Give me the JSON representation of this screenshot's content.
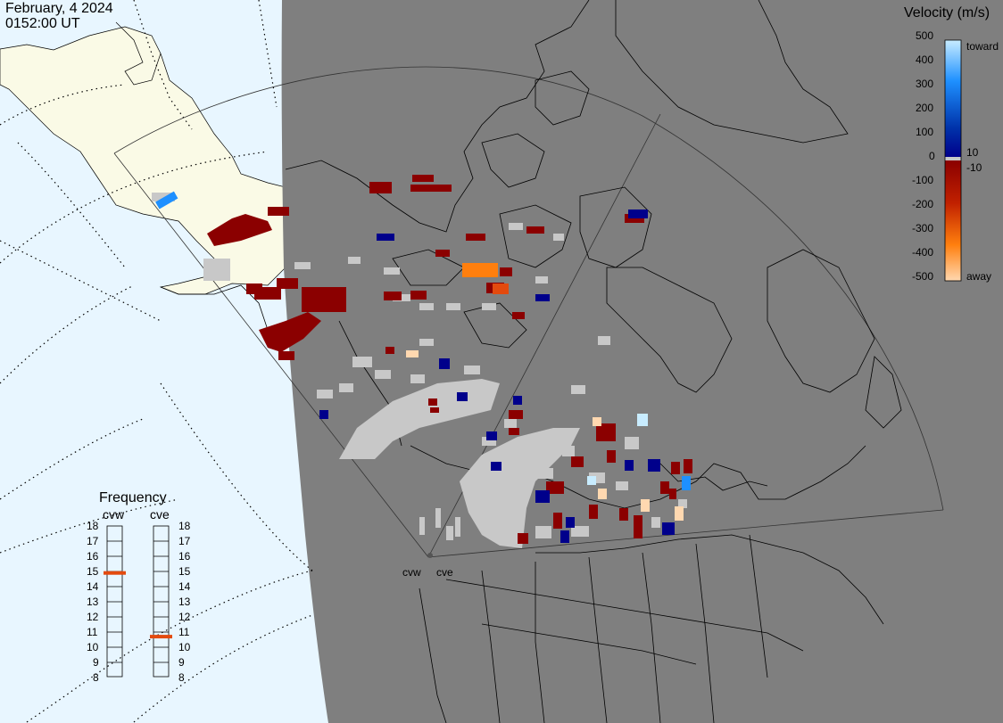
{
  "header": {
    "date": "February, 4 2024",
    "time": "0152:00 UT"
  },
  "velocity_scale": {
    "title": "Velocity (m/s)",
    "ticks": [
      "500",
      "400",
      "300",
      "200",
      "100",
      "0",
      "-100",
      "-200",
      "-300",
      "-400",
      "-500"
    ],
    "toward_label": "toward",
    "away_label": "away",
    "threshold_pos": "10",
    "threshold_neg": "-10",
    "colors": {
      "toward_high": "#c8ecff",
      "toward_mid": "#1e90ff",
      "toward_low": "#00008b",
      "zero": "#c8c8c8",
      "away_low": "#8b0000",
      "away_mid": "#e34a0e",
      "away_high": "#ffd8b0"
    }
  },
  "frequency_panel": {
    "title": "Frequency",
    "radars": [
      {
        "name": "cvw",
        "frequency_mhz": 14.9
      },
      {
        "name": "cve",
        "frequency_mhz": 10.7
      }
    ],
    "ticks": [
      "18",
      "17",
      "16",
      "15",
      "14",
      "13",
      "12",
      "11",
      "10",
      "9",
      "8"
    ],
    "indicator_color": "#e34a0e"
  },
  "map": {
    "colors": {
      "ocean": "#e8f6ff",
      "land_day": "#fafae6",
      "night": "#7f7f7f",
      "ground_scatter": "#c8c8c8"
    },
    "station_labels": [
      "cvw",
      "cve"
    ]
  }
}
